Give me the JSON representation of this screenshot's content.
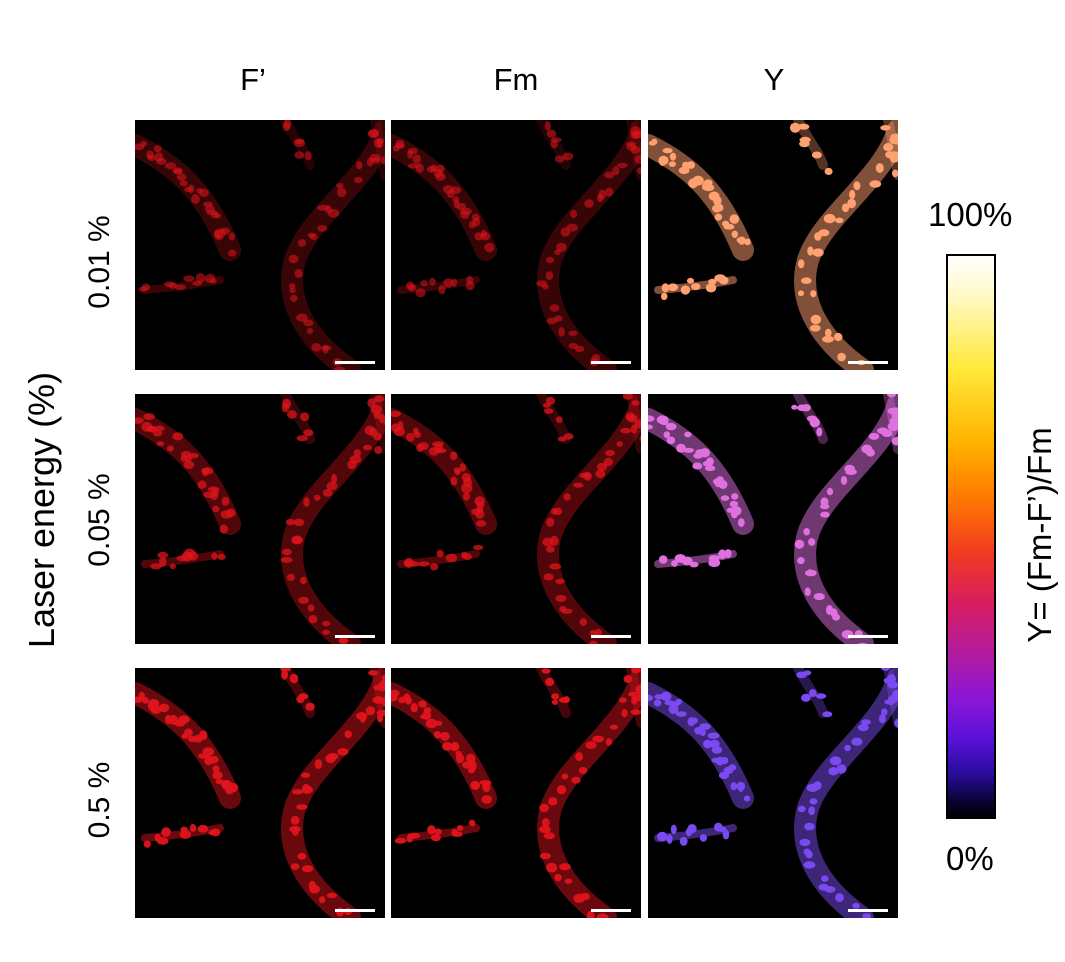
{
  "figure": {
    "columns": [
      "F’",
      "Fm",
      "Y"
    ],
    "rows": [
      "0.01 %",
      "0.05 %",
      "0.5 %"
    ],
    "y_axis_title": "Laser energy (%)",
    "colorbar": {
      "max_label": "100%",
      "min_label": "0%",
      "title": "Y= (Fm-F’)/Fm",
      "colormap": [
        "#000000",
        "#2b0ca0",
        "#8a16d8",
        "#d81d60",
        "#ff7a00",
        "#ffe93a",
        "#ffffff"
      ]
    },
    "panel_colors": {
      "fluorescence": "#e0141c",
      "yield_row1": "#ffa070",
      "yield_row2": "#e070e0",
      "yield_row3": "#7a4af0"
    }
  }
}
